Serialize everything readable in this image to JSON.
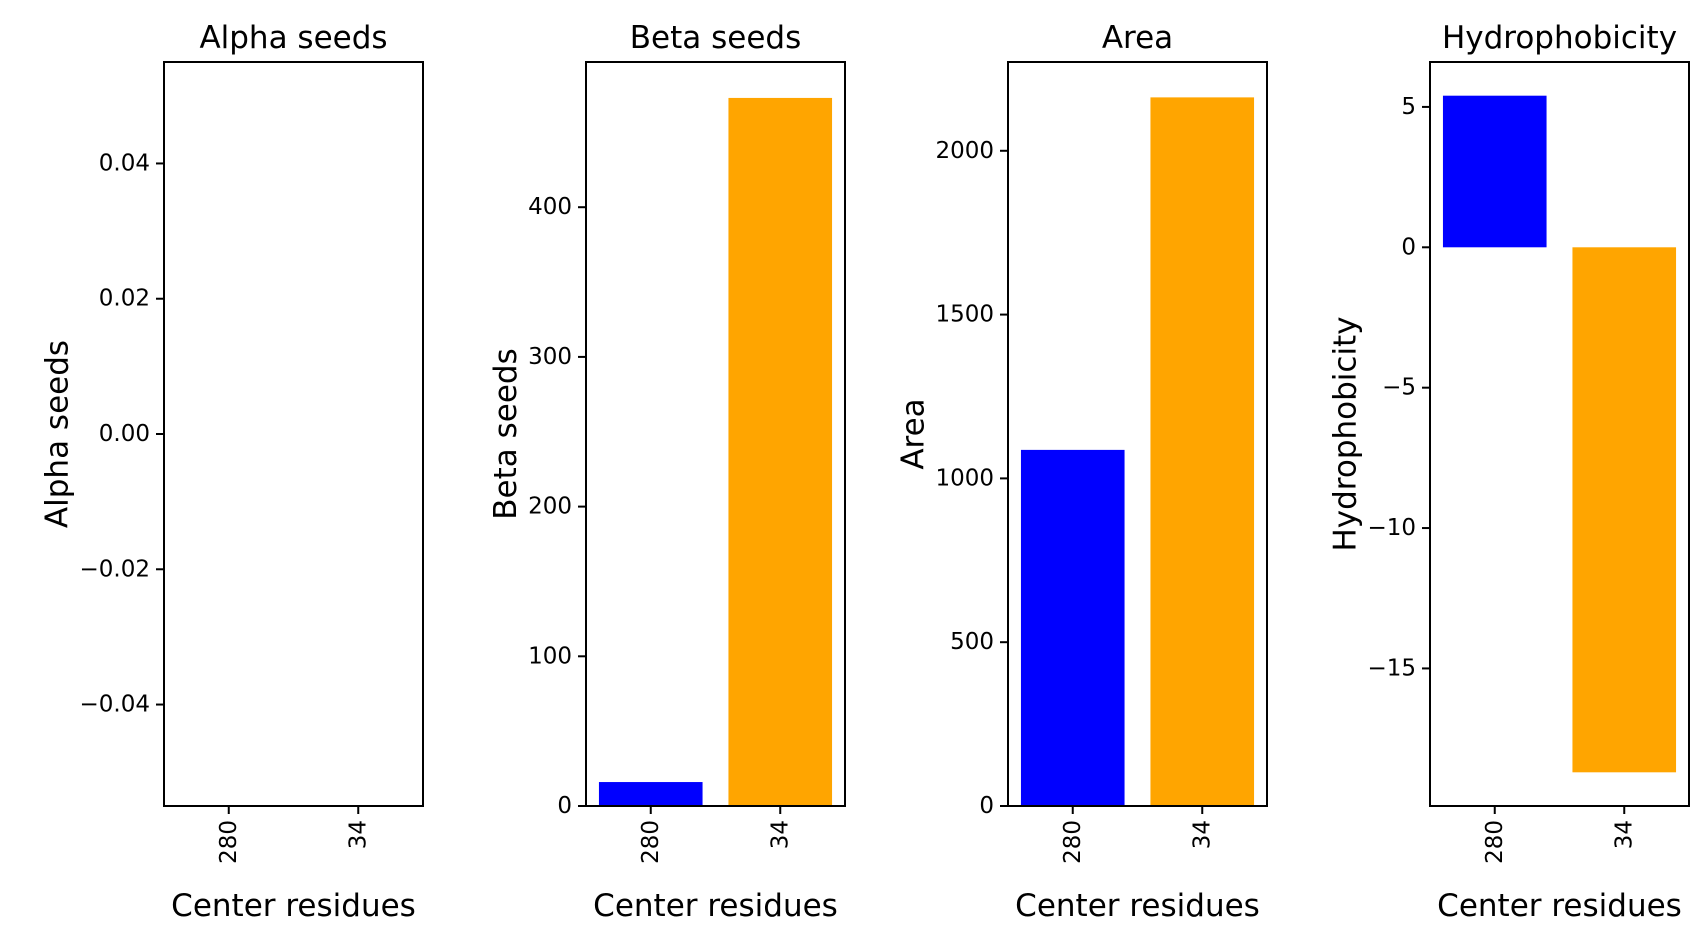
{
  "chart_data": [
    {
      "type": "bar",
      "title": "Alpha seeds",
      "xlabel": "Center residues",
      "ylabel": "Alpha seeds",
      "categories": [
        "280",
        "34"
      ],
      "values": [
        0,
        0
      ],
      "colors": [
        "#0000ff",
        "#ffa500"
      ],
      "ylim": [
        -0.055,
        0.055
      ],
      "yticks": [
        -0.04,
        -0.02,
        0.0,
        0.02,
        0.04
      ],
      "ytick_labels": [
        "−0.04",
        "−0.02",
        "0.00",
        "0.02",
        "0.04"
      ],
      "grid": false
    },
    {
      "type": "bar",
      "title": "Beta seeds",
      "xlabel": "Center residues",
      "ylabel": "Beta seeds",
      "categories": [
        "280",
        "34"
      ],
      "values": [
        16,
        473
      ],
      "colors": [
        "#0000ff",
        "#ffa500"
      ],
      "ylim": [
        0,
        497
      ],
      "yticks": [
        0,
        100,
        200,
        300,
        400
      ],
      "ytick_labels": [
        "0",
        "100",
        "200",
        "300",
        "400"
      ],
      "grid": false
    },
    {
      "type": "bar",
      "title": "Area",
      "xlabel": "Center residues",
      "ylabel": "Area",
      "categories": [
        "280",
        "34"
      ],
      "values": [
        1087,
        2163
      ],
      "colors": [
        "#0000ff",
        "#ffa500"
      ],
      "ylim": [
        0,
        2271
      ],
      "yticks": [
        0,
        500,
        1000,
        1500,
        2000
      ],
      "ytick_labels": [
        "0",
        "500",
        "1000",
        "1500",
        "2000"
      ],
      "grid": false
    },
    {
      "type": "bar",
      "title": "Hydrophobicity",
      "xlabel": "Center residues",
      "ylabel": "Hydrophobicity",
      "categories": [
        "280",
        "34"
      ],
      "values": [
        5.4,
        -18.7
      ],
      "colors": [
        "#0000ff",
        "#ffa500"
      ],
      "ylim": [
        -19.9,
        6.6
      ],
      "yticks": [
        -15,
        -10,
        -5,
        0,
        5
      ],
      "ytick_labels": [
        "−15",
        "−10",
        "−5",
        "0",
        "5"
      ],
      "grid": false
    }
  ]
}
